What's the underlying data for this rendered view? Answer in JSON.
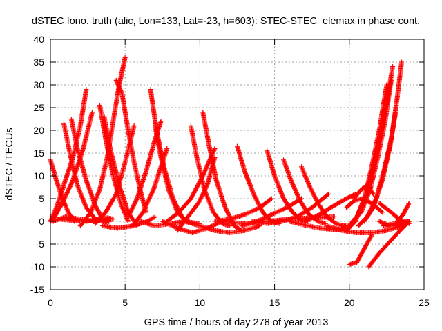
{
  "chart_data": {
    "type": "scatter",
    "title": "dSTEC Iono. truth (alic, Lon=133, Lat=-23, h=603): STEC-STEC_elemax in phase cont.",
    "xlabel": "GPS time / hours of day 278 of year 2013",
    "ylabel": "dSTEC  / TECUs",
    "xlim": [
      0,
      25
    ],
    "ylim": [
      -15,
      40
    ],
    "x_ticks": [
      "0",
      "5",
      "10",
      "15",
      "20",
      "25"
    ],
    "y_ticks": [
      "40",
      "35",
      "30",
      "25",
      "20",
      "15",
      "10",
      "5",
      "0",
      "-5",
      "-10",
      "-15"
    ],
    "grid": true,
    "marker": "plus",
    "color": "#ff0000",
    "series": [
      {
        "x": [
          0.0,
          0.4,
          0.8,
          1.2,
          1.6
        ],
        "y": [
          13.5,
          9,
          5,
          2,
          0
        ]
      },
      {
        "x": [
          0.0,
          0.4,
          0.9,
          1.5,
          2.0,
          2.4
        ],
        "y": [
          0,
          3,
          8,
          14,
          21,
          29
        ]
      },
      {
        "x": [
          0.1,
          0.8,
          1.5,
          2.2,
          2.8
        ],
        "y": [
          0,
          4,
          9,
          16,
          24
        ]
      },
      {
        "x": [
          0.9,
          1.3,
          1.8,
          2.4,
          3.0,
          3.6,
          4.0
        ],
        "y": [
          21.5,
          15,
          8,
          3,
          0.5,
          -0.2,
          0
        ]
      },
      {
        "x": [
          1.4,
          1.8,
          2.4,
          3.0,
          3.4
        ],
        "y": [
          22.5,
          16,
          9,
          3.5,
          1
        ]
      },
      {
        "x": [
          0.2,
          1.0,
          2.0,
          3.0,
          3.8,
          4.2
        ],
        "y": [
          0,
          1,
          0.5,
          0,
          0.8,
          0.5
        ]
      },
      {
        "x": [
          0.5,
          1.5,
          2.5,
          3.3,
          3.9
        ],
        "y": [
          0.5,
          0.2,
          0,
          0.6,
          0
        ]
      },
      {
        "x": [
          3.3,
          3.7,
          4.2,
          4.7,
          5.2
        ],
        "y": [
          25.5,
          18,
          10,
          4,
          0
        ]
      },
      {
        "x": [
          3.6,
          4.0,
          4.6,
          5.2,
          5.8
        ],
        "y": [
          23,
          16,
          8,
          2,
          -1
        ]
      },
      {
        "x": [
          2.0,
          2.7,
          3.3,
          3.8,
          4.2,
          4.6,
          5.0
        ],
        "y": [
          -1,
          2,
          7,
          14,
          22,
          30,
          36
        ]
      },
      {
        "x": [
          4.4,
          4.8,
          5.2,
          5.6,
          6.0,
          6.4
        ],
        "y": [
          31,
          28,
          20,
          13,
          7,
          2
        ]
      },
      {
        "x": [
          3.0,
          3.7,
          4.4,
          5.0,
          5.6
        ],
        "y": [
          -0.5,
          2,
          6,
          13,
          21
        ]
      },
      {
        "x": [
          3.5,
          4.5,
          5.5,
          6.5,
          7.0
        ],
        "y": [
          -1,
          -1.5,
          -1,
          0,
          1
        ]
      },
      {
        "x": [
          6.7,
          7.1,
          7.6,
          8.2,
          8.8,
          9.2
        ],
        "y": [
          29,
          20,
          12,
          5,
          1,
          0
        ]
      },
      {
        "x": [
          7.0,
          7.4,
          7.9,
          8.5,
          9.1
        ],
        "y": [
          21,
          14,
          7,
          2,
          0
        ]
      },
      {
        "x": [
          5.2,
          5.8,
          6.4,
          7.0,
          7.4
        ],
        "y": [
          1,
          5,
          11,
          18,
          22
        ]
      },
      {
        "x": [
          5.5,
          6.2,
          6.9,
          7.5,
          7.8
        ],
        "y": [
          -1,
          2,
          7,
          13,
          16
        ]
      },
      {
        "x": [
          6.0,
          7.0,
          8.0,
          9.0,
          10.0
        ],
        "y": [
          0,
          -1,
          -0.5,
          0,
          -0.5
        ]
      },
      {
        "x": [
          7.5,
          8.5,
          9.5,
          10.5,
          11.5
        ],
        "y": [
          0,
          -1.5,
          -2.5,
          -1.5,
          0
        ]
      },
      {
        "x": [
          9.4,
          9.8,
          10.3,
          10.9,
          11.5,
          12.0
        ],
        "y": [
          21,
          14,
          7,
          2,
          -0.5,
          -1
        ]
      },
      {
        "x": [
          10.2,
          10.6,
          11.1,
          11.7,
          12.3,
          12.8
        ],
        "y": [
          24,
          17,
          9,
          3,
          -1,
          -2
        ]
      },
      {
        "x": [
          7.8,
          8.6,
          9.4,
          10.2,
          11.0
        ],
        "y": [
          0,
          2,
          5,
          10,
          16
        ]
      },
      {
        "x": [
          8.5,
          9.2,
          9.9,
          10.5,
          11.0
        ],
        "y": [
          -2,
          1,
          4,
          8,
          14
        ]
      },
      {
        "x": [
          9.0,
          10.0,
          11.0,
          12.0,
          13.0,
          14.0
        ],
        "y": [
          0,
          -1,
          -2,
          -2.5,
          -2,
          -1
        ]
      },
      {
        "x": [
          12.5,
          13.0,
          13.6,
          14.2,
          14.8,
          15.3
        ],
        "y": [
          16.5,
          11,
          6,
          2,
          0,
          -0.5
        ]
      },
      {
        "x": [
          14.5,
          15.0,
          15.6,
          16.2,
          16.8,
          17.3
        ],
        "y": [
          15.5,
          10,
          5,
          2,
          0.2,
          0
        ]
      },
      {
        "x": [
          15.6,
          16.1,
          16.7,
          17.3,
          17.9,
          18.4
        ],
        "y": [
          13.5,
          9,
          4.5,
          1.5,
          0,
          -0.5
        ]
      },
      {
        "x": [
          16.8,
          17.3,
          17.9,
          18.5,
          19.1,
          19.6
        ],
        "y": [
          12,
          8,
          4,
          1,
          -0.5,
          -1
        ]
      },
      {
        "x": [
          11.0,
          12.0,
          13.0,
          14.0,
          14.8
        ],
        "y": [
          0,
          0.5,
          1.5,
          3,
          5
        ]
      },
      {
        "x": [
          12.8,
          13.8,
          14.8,
          15.8,
          16.8
        ],
        "y": [
          -1,
          0,
          1.5,
          3,
          5
        ]
      },
      {
        "x": [
          13.5,
          14.5,
          15.5,
          16.5,
          17.5,
          18.6
        ],
        "y": [
          0,
          -0.5,
          0,
          1,
          3,
          6
        ]
      },
      {
        "x": [
          11.5,
          13.0,
          14.5,
          16.0,
          17.5,
          19.0
        ],
        "y": [
          0,
          -0.5,
          0,
          0.5,
          0.8,
          1
        ]
      },
      {
        "x": [
          16.0,
          17.0,
          18.0,
          19.0,
          20.0
        ],
        "y": [
          0,
          -0.8,
          -1.5,
          -1.8,
          -1.5
        ]
      },
      {
        "x": [
          17.0,
          18.0,
          19.0,
          19.8,
          20.4
        ],
        "y": [
          0,
          1.5,
          3.5,
          5,
          6
        ]
      },
      {
        "x": [
          18.5,
          19.5,
          20.5,
          21.5,
          22.5,
          23.5
        ],
        "y": [
          -1,
          -2,
          -2.5,
          -2.5,
          -2,
          -1
        ]
      },
      {
        "x": [
          19.5,
          20.0,
          20.5,
          21.0,
          21.5,
          22.0,
          22.5,
          22.9
        ],
        "y": [
          -1,
          -1,
          1,
          5,
          11,
          18,
          26,
          34
        ]
      },
      {
        "x": [
          19.8,
          20.4,
          21.0,
          21.5,
          22.0,
          22.5
        ],
        "y": [
          -2,
          0,
          5,
          12,
          20,
          30
        ]
      },
      {
        "x": [
          20.2,
          20.8,
          21.4,
          21.9,
          22.4,
          22.8
        ],
        "y": [
          0,
          2,
          7,
          14,
          22,
          31
        ]
      },
      {
        "x": [
          20.6,
          21.2,
          21.8,
          22.3,
          22.8,
          23.2,
          23.5
        ],
        "y": [
          -1,
          1,
          5,
          11,
          18,
          27,
          35
        ]
      },
      {
        "x": [
          21.0,
          21.6,
          22.2,
          22.7,
          23.1
        ],
        "y": [
          0,
          3,
          9,
          16,
          24
        ]
      },
      {
        "x": [
          20.0,
          20.5,
          21.0,
          21.5
        ],
        "y": [
          -9.5,
          -9,
          -6,
          -3
        ]
      },
      {
        "x": [
          21.3,
          22.0,
          22.7,
          23.4,
          24.0
        ],
        "y": [
          -10,
          -7,
          -4.5,
          -2,
          0
        ]
      },
      {
        "x": [
          20.3,
          20.8,
          21.2,
          21.6
        ],
        "y": [
          5,
          7,
          8,
          6
        ]
      },
      {
        "x": [
          19.8,
          20.3,
          20.8,
          21.5,
          22.2
        ],
        "y": [
          3,
          4.5,
          5,
          4,
          2
        ]
      },
      {
        "x": [
          22.0,
          22.8,
          23.5,
          24.0
        ],
        "y": [
          4,
          2,
          0,
          -0.5
        ]
      },
      {
        "x": [
          22.3,
          23.0,
          23.5,
          24.0
        ],
        "y": [
          -1,
          -0.5,
          0,
          0
        ]
      },
      {
        "x": [
          23.2,
          23.6,
          24.0
        ],
        "y": [
          0,
          1.5,
          4
        ]
      },
      {
        "x": [
          22.0,
          22.7,
          23.4,
          24.0
        ],
        "y": [
          0,
          -1,
          -0.5,
          0
        ]
      }
    ]
  }
}
